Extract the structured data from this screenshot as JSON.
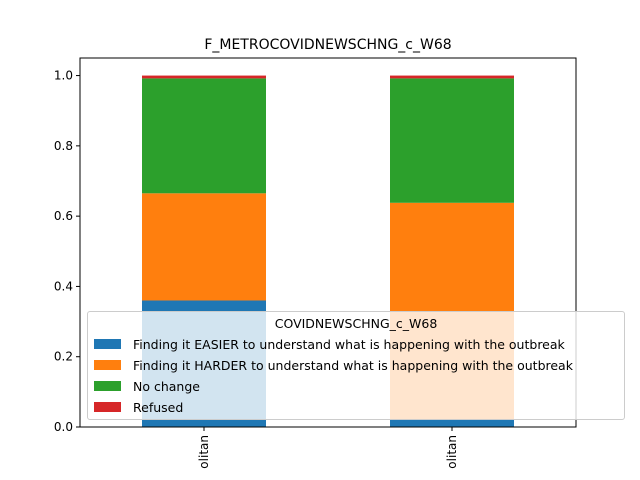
{
  "chart_data": {
    "type": "bar",
    "stacked": true,
    "title": "F_METROCOVIDNEWSCHNG_c_W68",
    "categories": [
      "olitan",
      "olitan"
    ],
    "series": [
      {
        "name": "Finding it EASIER to understand what is happening with the outbreak",
        "color": "#1f77b4",
        "values": [
          0.36,
          0.02
        ]
      },
      {
        "name": "Finding it HARDER to understand what is happening with the outbreak",
        "color": "#ff7f0e",
        "values": [
          0.305,
          0.618
        ]
      },
      {
        "name": "No change",
        "color": "#2ca02c",
        "values": [
          0.327,
          0.354
        ]
      },
      {
        "name": "Refused",
        "color": "#d62728",
        "values": [
          0.008,
          0.008
        ]
      }
    ],
    "ylim": [
      0,
      1.05
    ],
    "yticks": [
      "0.0",
      "0.2",
      "0.4",
      "0.6",
      "0.8",
      "1.0"
    ],
    "legend": {
      "title": "COVIDNEWSCHNG_c_W68",
      "placement": "lower-right"
    },
    "grid": false
  }
}
